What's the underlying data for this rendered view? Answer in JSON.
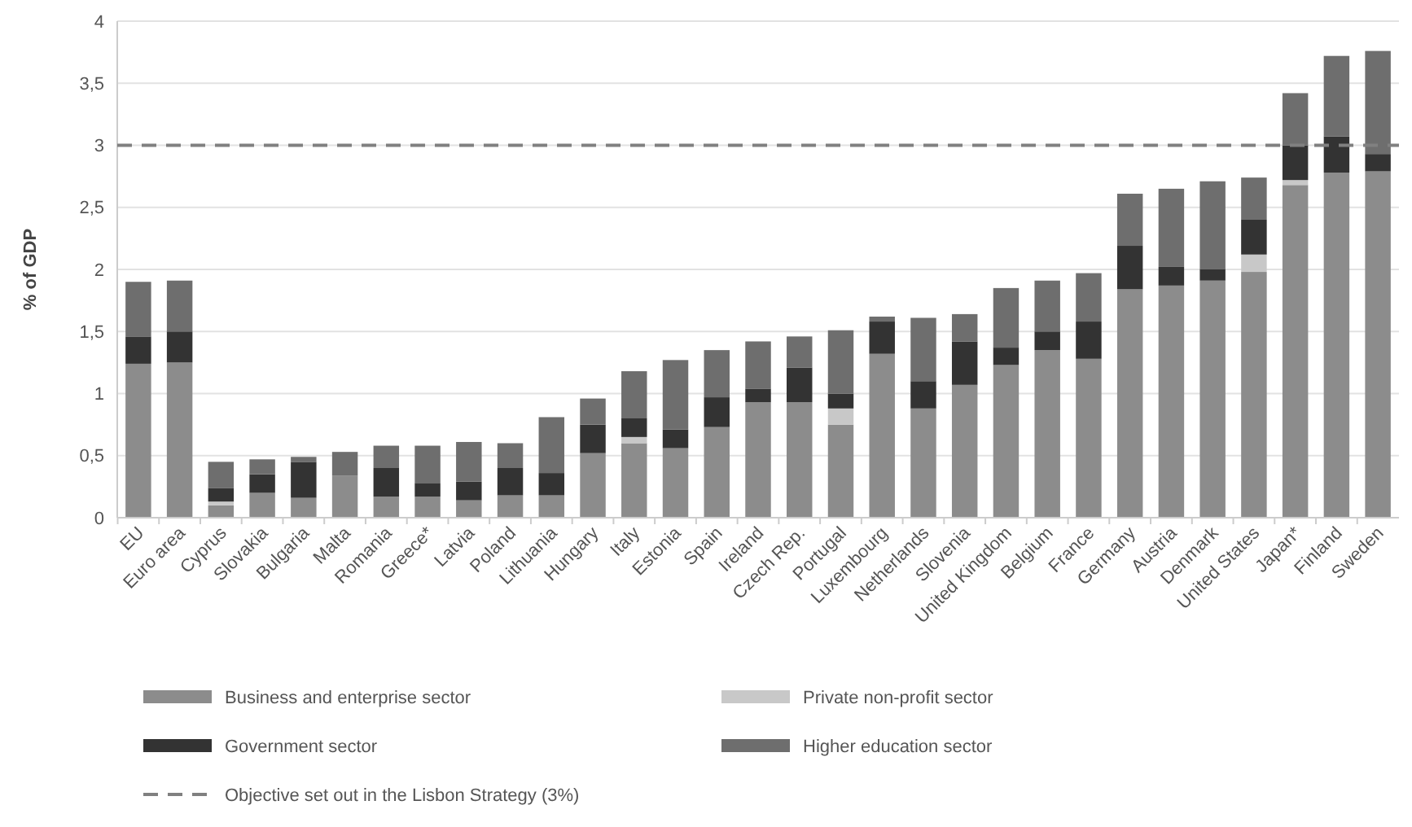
{
  "chart_data": {
    "type": "bar",
    "stacked": true,
    "ylabel": "% of GDP",
    "categories": [
      "EU",
      "Euro area",
      "Cyprus",
      "Slovakia",
      "Bulgaria",
      "Malta",
      "Romania",
      "Greece*",
      "Latvia",
      "Poland",
      "Lithuania",
      "Hungary",
      "Italy",
      "Estonia",
      "Spain",
      "Ireland",
      "Czech Rep.",
      "Portugal",
      "Luxembourg",
      "Netherlands",
      "Slovenia",
      "United Kingdom",
      "Belgium",
      "France",
      "Germany",
      "Austria",
      "Denmark",
      "United States",
      "Japan*",
      "Finland",
      "Sweden"
    ],
    "series": [
      {
        "name": "Business and enterprise sector",
        "color": "#8c8c8c",
        "values": [
          1.24,
          1.25,
          0.1,
          0.2,
          0.16,
          0.34,
          0.17,
          0.17,
          0.14,
          0.18,
          0.18,
          0.52,
          0.6,
          0.56,
          0.73,
          0.93,
          0.93,
          0.75,
          1.32,
          0.88,
          1.07,
          1.23,
          1.35,
          1.28,
          1.84,
          1.87,
          1.91,
          1.98,
          2.68,
          2.78,
          2.79
        ]
      },
      {
        "name": "Private non-profit sector",
        "color": "#c8c8c8",
        "values": [
          0,
          0,
          0.03,
          0,
          0,
          0,
          0,
          0,
          0,
          0,
          0,
          0,
          0.05,
          0,
          0,
          0,
          0,
          0.13,
          0,
          0,
          0,
          0,
          0,
          0,
          0,
          0,
          0,
          0.14,
          0.04,
          0,
          0
        ]
      },
      {
        "name": "Government sector",
        "color": "#333333",
        "values": [
          0.22,
          0.25,
          0.11,
          0.15,
          0.29,
          0,
          0.23,
          0.11,
          0.15,
          0.22,
          0.18,
          0.23,
          0.15,
          0.15,
          0.24,
          0.11,
          0.28,
          0.12,
          0.26,
          0.22,
          0.35,
          0.14,
          0.15,
          0.3,
          0.35,
          0.15,
          0.09,
          0.28,
          0.28,
          0.29,
          0.14
        ]
      },
      {
        "name": "Higher education sector",
        "color": "#6e6e6e",
        "values": [
          0.44,
          0.41,
          0.21,
          0.12,
          0.04,
          0.19,
          0.18,
          0.3,
          0.32,
          0.2,
          0.45,
          0.21,
          0.38,
          0.56,
          0.38,
          0.38,
          0.25,
          0.51,
          0.04,
          0.51,
          0.22,
          0.48,
          0.41,
          0.39,
          0.42,
          0.63,
          0.71,
          0.34,
          0.42,
          0.65,
          0.83
        ]
      }
    ],
    "ylim": [
      0,
      4
    ],
    "yticks": [
      0,
      {
        "value": 0.5,
        "label": "0,5"
      },
      1,
      {
        "value": 1.5,
        "label": "1,5"
      },
      2,
      {
        "value": 2.5,
        "label": "2,5"
      },
      3,
      {
        "value": 3.5,
        "label": "3,5"
      },
      4
    ],
    "grid": "y",
    "legend": "bottom",
    "ref_lines": [
      {
        "axis": "y",
        "value": 3,
        "label": "Objective set out in the Lisbon Strategy (3%)",
        "color": "#808080",
        "line_style": "dashed"
      }
    ]
  }
}
